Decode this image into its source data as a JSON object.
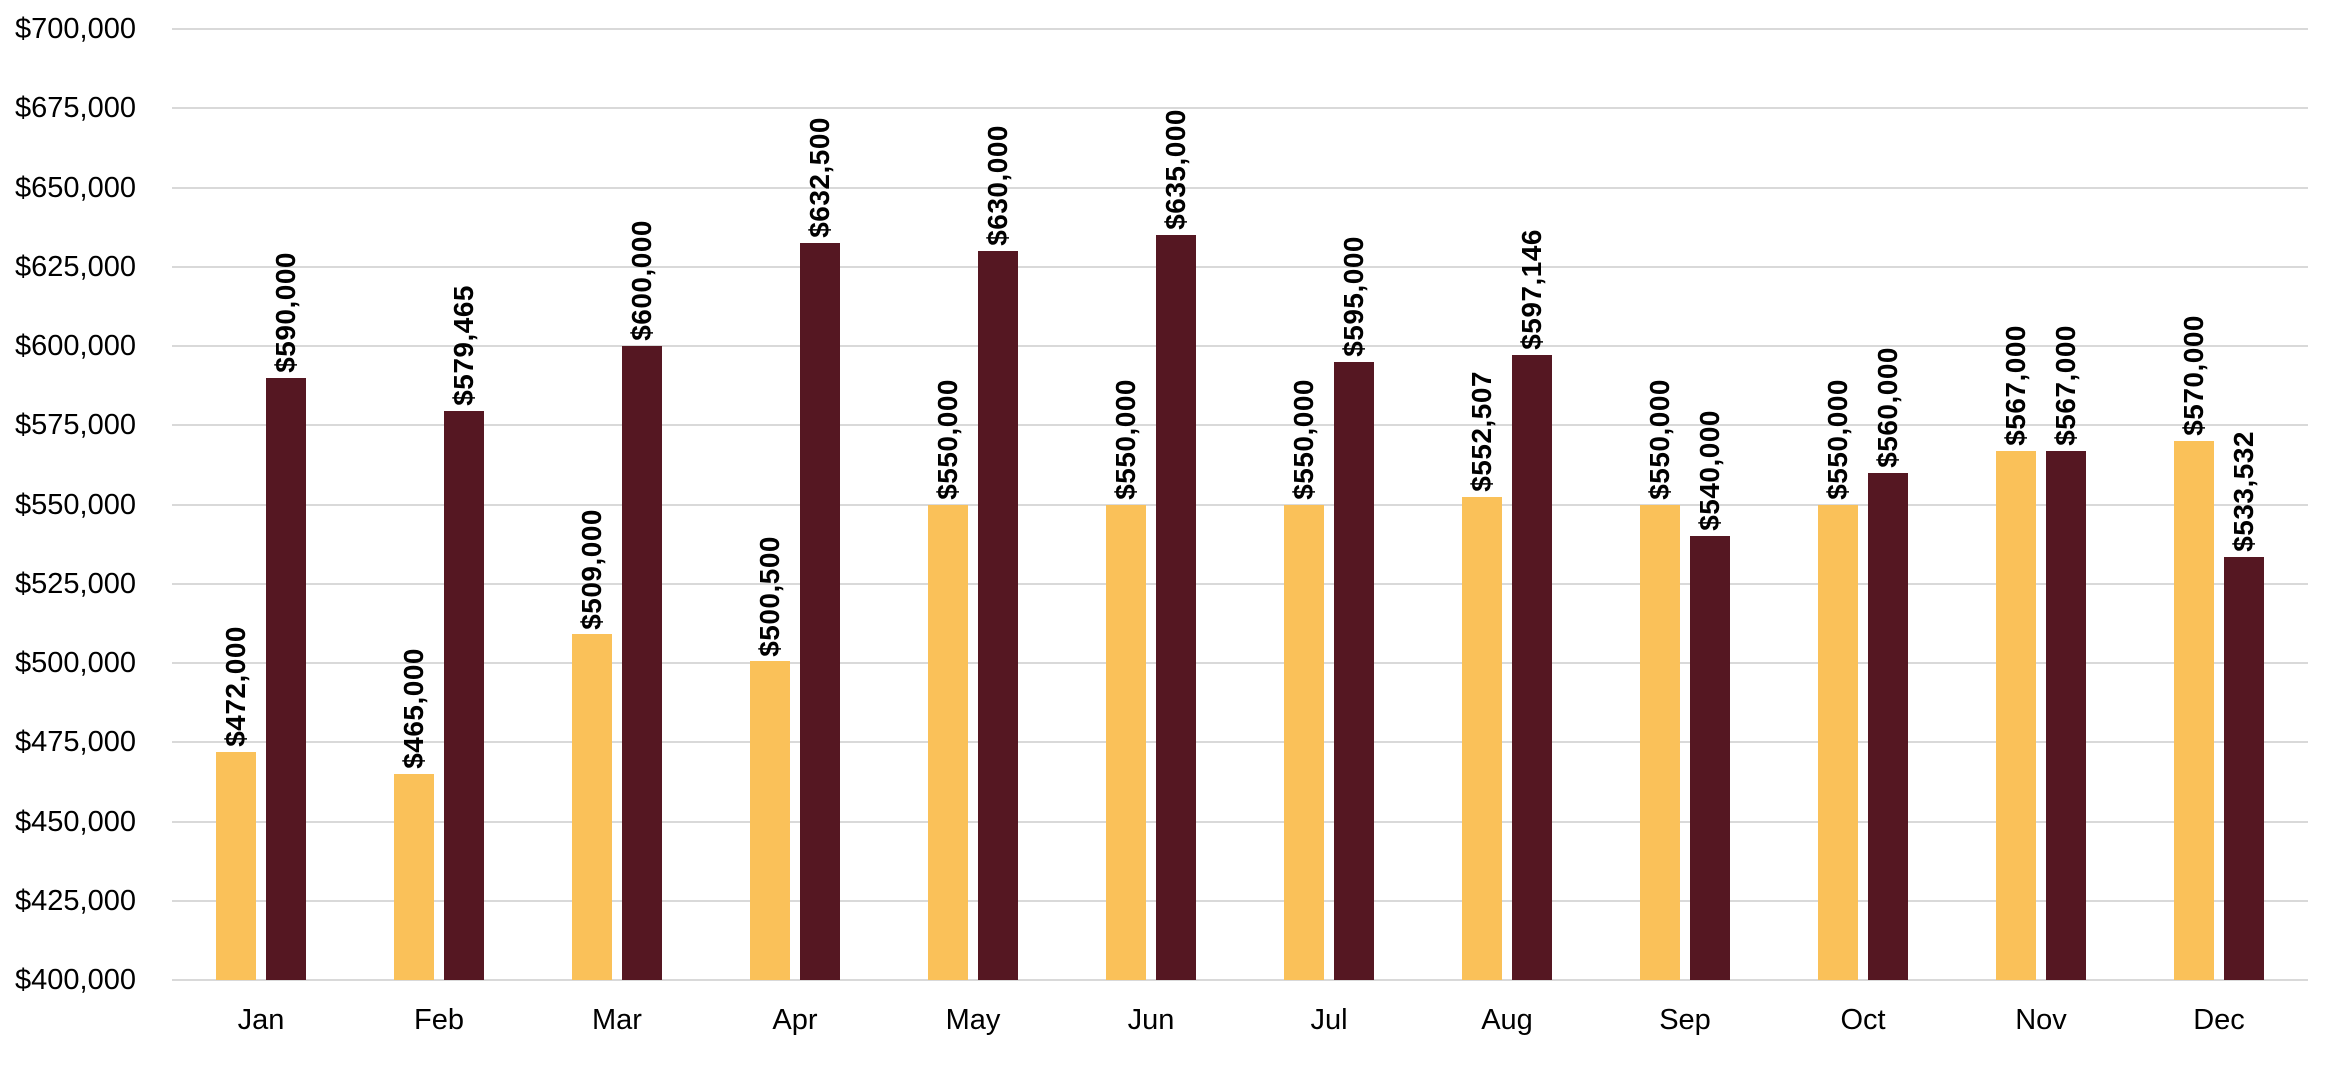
{
  "chart_data": {
    "type": "bar",
    "title": "",
    "xlabel": "",
    "ylabel": "",
    "categories": [
      "Jan",
      "Feb",
      "Mar",
      "Apr",
      "May",
      "Jun",
      "Jul",
      "Aug",
      "Sep",
      "Oct",
      "Nov",
      "Dec"
    ],
    "series": [
      {
        "name": "gold-series",
        "color": "#FAC159",
        "values": [
          472000,
          465000,
          509000,
          500500,
          550000,
          550000,
          550000,
          552507,
          550000,
          550000,
          567000,
          570000
        ],
        "labels": [
          "$472,000",
          "$465,000",
          "$509,000",
          "$500,500",
          "$550,000",
          "$550,000",
          "$550,000",
          "$552,507",
          "$550,000",
          "$550,000",
          "$567,000",
          "$570,000"
        ]
      },
      {
        "name": "maroon-series",
        "color": "#551722",
        "values": [
          590000,
          579465,
          600000,
          632500,
          630000,
          635000,
          595000,
          597146,
          540000,
          560000,
          567000,
          533532
        ],
        "labels": [
          "$590,000",
          "$579,465",
          "$600,000",
          "$632,500",
          "$630,000",
          "$635,000",
          "$595,000",
          "$597,146",
          "$540,000",
          "$560,000",
          "$567,000",
          "$533,532"
        ]
      }
    ],
    "ylim": [
      400000,
      700000
    ],
    "y_step": 25000,
    "y_tick_labels": [
      "$700,000",
      "$675,000",
      "$650,000",
      "$625,000",
      "$600,000",
      "$575,000",
      "$550,000",
      "$525,000",
      "$500,000",
      "$475,000",
      "$450,000",
      "$425,000",
      "$400,000"
    ],
    "grid": "horizontal",
    "gridline_color": "#D9D9D9",
    "legend": "none",
    "data_label_rotation": 90,
    "data_label_position": "outside-end"
  }
}
